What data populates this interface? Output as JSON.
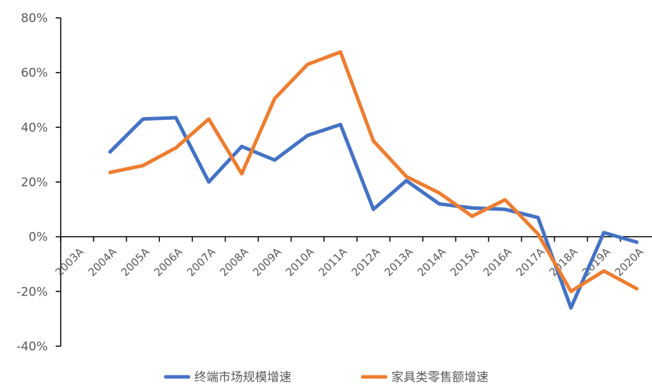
{
  "chart_data": {
    "type": "line",
    "title": "",
    "xlabel": "",
    "ylabel": "",
    "categories": [
      "2003A",
      "2004A",
      "2005A",
      "2006A",
      "2007A",
      "2008A",
      "2009A",
      "2010A",
      "2011A",
      "2012A",
      "2013A",
      "2014A",
      "2015A",
      "2016A",
      "2017A",
      "2018A",
      "2019A",
      "2020A"
    ],
    "ylim": [
      -40,
      80
    ],
    "yticks": [
      80,
      60,
      40,
      20,
      0,
      -20,
      -40
    ],
    "ytick_labels": [
      "80%",
      "60%",
      "40%",
      "20%",
      "0%",
      "-20%",
      "-40%"
    ],
    "grid": false,
    "legend": "bottom",
    "series": [
      {
        "name": "终端市场规模增速",
        "color": "#4472C4",
        "values": [
          null,
          31,
          43,
          43.5,
          20,
          33,
          28,
          37,
          41,
          10,
          20.5,
          12,
          10.5,
          10,
          7,
          -26,
          1.5,
          -2
        ]
      },
      {
        "name": "家具类零售额增速",
        "color": "#ED7D31",
        "values": [
          null,
          23.5,
          26,
          32.5,
          43,
          23,
          50.5,
          63,
          67.5,
          35,
          22,
          16,
          7.5,
          13.5,
          1,
          -20,
          -12.5,
          -19
        ]
      }
    ]
  }
}
